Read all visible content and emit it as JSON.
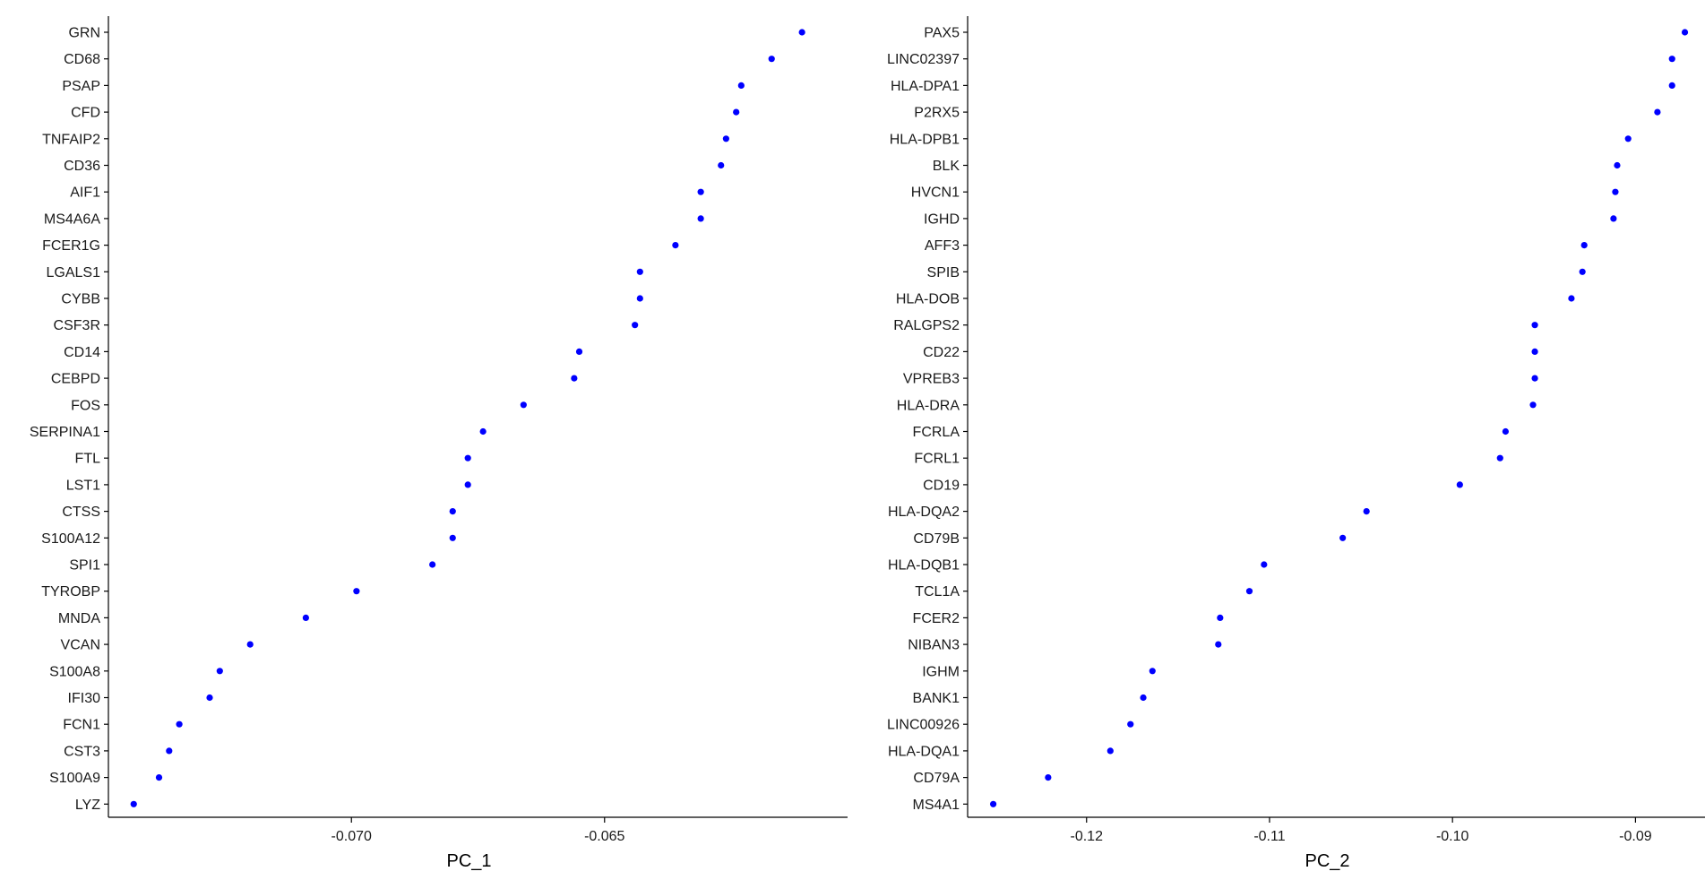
{
  "chart_data": [
    {
      "type": "scatter",
      "xlabel": "PC_1",
      "ylabel": "",
      "xlim": [
        -0.0748,
        -0.0602
      ],
      "xticks": [
        -0.07,
        -0.065
      ],
      "xtick_labels": [
        "-0.070",
        "-0.065"
      ],
      "grid": false,
      "point_color": "#0000ff",
      "categories": [
        "GRN",
        "CD68",
        "PSAP",
        "CFD",
        "TNFAIP2",
        "CD36",
        "AIF1",
        "MS4A6A",
        "FCER1G",
        "LGALS1",
        "CYBB",
        "CSF3R",
        "CD14",
        "CEBPD",
        "FOS",
        "SERPINA1",
        "FTL",
        "LST1",
        "CTSS",
        "S100A12",
        "SPI1",
        "TYROBP",
        "MNDA",
        "VCAN",
        "S100A8",
        "IFI30",
        "FCN1",
        "CST3",
        "S100A9",
        "LYZ"
      ],
      "values": [
        -0.0611,
        -0.0617,
        -0.0623,
        -0.0624,
        -0.0626,
        -0.0627,
        -0.0631,
        -0.0631,
        -0.0636,
        -0.0643,
        -0.0643,
        -0.0644,
        -0.0655,
        -0.0656,
        -0.0666,
        -0.0674,
        -0.0677,
        -0.0677,
        -0.068,
        -0.068,
        -0.0684,
        -0.0699,
        -0.0709,
        -0.072,
        -0.0726,
        -0.0728,
        -0.0734,
        -0.0736,
        -0.0738,
        -0.0743
      ]
    },
    {
      "type": "scatter",
      "xlabel": "PC_2",
      "ylabel": "",
      "xlim": [
        -0.1265,
        -0.0862
      ],
      "xticks": [
        -0.12,
        -0.11,
        -0.1,
        -0.09
      ],
      "xtick_labels": [
        "-0.12",
        "-0.11",
        "-0.10",
        "-0.09"
      ],
      "grid": false,
      "point_color": "#0000ff",
      "categories": [
        "PAX5",
        "LINC02397",
        "HLA-DPA1",
        "P2RX5",
        "HLA-DPB1",
        "BLK",
        "HVCN1",
        "IGHD",
        "AFF3",
        "SPIB",
        "HLA-DOB",
        "RALGPS2",
        "CD22",
        "VPREB3",
        "HLA-DRA",
        "FCRLA",
        "FCRL1",
        "CD19",
        "HLA-DQA2",
        "CD79B",
        "HLA-DQB1",
        "TCL1A",
        "FCER2",
        "NIBAN3",
        "IGHM",
        "BANK1",
        "LINC00926",
        "HLA-DQA1",
        "CD79A",
        "MS4A1"
      ],
      "values": [
        -0.0873,
        -0.088,
        -0.088,
        -0.0888,
        -0.0904,
        -0.091,
        -0.0911,
        -0.0912,
        -0.0928,
        -0.0929,
        -0.0935,
        -0.0955,
        -0.0955,
        -0.0955,
        -0.0956,
        -0.0971,
        -0.0974,
        -0.0996,
        -0.1047,
        -0.106,
        -0.1103,
        -0.1111,
        -0.1127,
        -0.1128,
        -0.1164,
        -0.1169,
        -0.1176,
        -0.1187,
        -0.1221,
        -0.1251
      ]
    }
  ]
}
